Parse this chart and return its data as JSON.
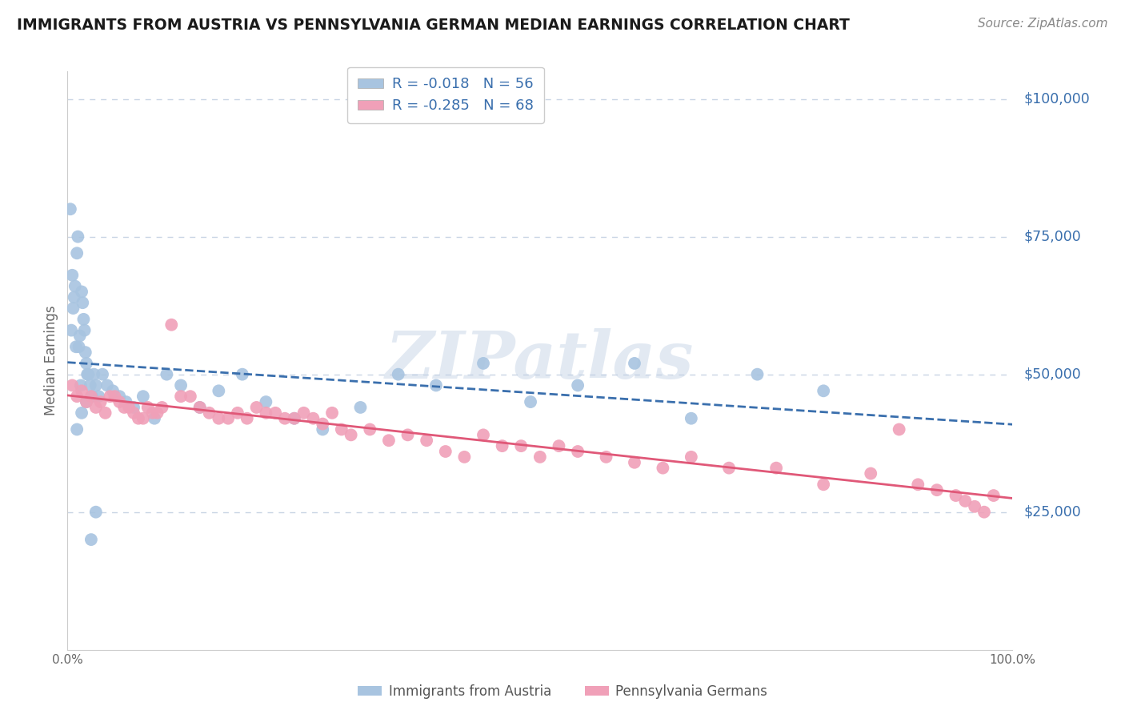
{
  "title": "IMMIGRANTS FROM AUSTRIA VS PENNSYLVANIA GERMAN MEDIAN EARNINGS CORRELATION CHART",
  "source": "Source: ZipAtlas.com",
  "ylabel": "Median Earnings",
  "watermark": "ZIPatlas",
  "series": [
    {
      "name": "Immigrants from Austria",
      "R": -0.018,
      "N": 56,
      "color": "#a8c4e0",
      "line_color": "#3a6fad",
      "line_style": "dashed",
      "x": [
        0.3,
        0.5,
        0.7,
        0.8,
        1.0,
        1.1,
        1.2,
        1.3,
        1.4,
        1.5,
        1.6,
        1.7,
        1.8,
        1.9,
        2.0,
        2.1,
        2.2,
        2.4,
        2.6,
        2.8,
        3.0,
        3.3,
        3.7,
        4.2,
        4.8,
        5.5,
        6.2,
        7.0,
        8.0,
        9.2,
        10.5,
        12.0,
        14.0,
        16.0,
        18.5,
        21.0,
        24.0,
        27.0,
        31.0,
        35.0,
        39.0,
        44.0,
        49.0,
        54.0,
        60.0,
        66.0,
        73.0,
        80.0,
        0.4,
        0.6,
        0.9,
        1.0,
        1.5,
        2.0,
        2.5,
        3.0
      ],
      "y": [
        80000,
        68000,
        64000,
        66000,
        72000,
        75000,
        55000,
        57000,
        48000,
        65000,
        63000,
        60000,
        58000,
        54000,
        52000,
        50000,
        50000,
        48000,
        46000,
        50000,
        48000,
        46000,
        50000,
        48000,
        47000,
        46000,
        45000,
        44000,
        46000,
        42000,
        50000,
        48000,
        44000,
        47000,
        50000,
        45000,
        42000,
        40000,
        44000,
        50000,
        48000,
        52000,
        45000,
        48000,
        52000,
        42000,
        50000,
        47000,
        58000,
        62000,
        55000,
        40000,
        43000,
        45000,
        20000,
        25000
      ]
    },
    {
      "name": "Pennsylvania Germans",
      "R": -0.285,
      "N": 68,
      "color": "#f0a0b8",
      "line_color": "#e05878",
      "line_style": "solid",
      "x": [
        0.5,
        1.0,
        1.5,
        2.0,
        2.5,
        3.0,
        3.5,
        4.0,
        4.5,
        5.0,
        5.5,
        6.0,
        6.5,
        7.0,
        7.5,
        8.0,
        8.5,
        9.0,
        9.5,
        10.0,
        11.0,
        12.0,
        13.0,
        14.0,
        15.0,
        16.0,
        17.0,
        18.0,
        19.0,
        20.0,
        21.0,
        22.0,
        23.0,
        24.0,
        25.0,
        26.0,
        27.0,
        28.0,
        29.0,
        30.0,
        32.0,
        34.0,
        36.0,
        38.0,
        40.0,
        42.0,
        44.0,
        46.0,
        48.0,
        50.0,
        52.0,
        54.0,
        57.0,
        60.0,
        63.0,
        66.0,
        70.0,
        75.0,
        80.0,
        85.0,
        88.0,
        90.0,
        92.0,
        94.0,
        95.0,
        96.0,
        97.0,
        98.0
      ],
      "y": [
        48000,
        46000,
        47000,
        45000,
        46000,
        44000,
        45000,
        43000,
        46000,
        46000,
        45000,
        44000,
        44000,
        43000,
        42000,
        42000,
        44000,
        43000,
        43000,
        44000,
        59000,
        46000,
        46000,
        44000,
        43000,
        42000,
        42000,
        43000,
        42000,
        44000,
        43000,
        43000,
        42000,
        42000,
        43000,
        42000,
        41000,
        43000,
        40000,
        39000,
        40000,
        38000,
        39000,
        38000,
        36000,
        35000,
        39000,
        37000,
        37000,
        35000,
        37000,
        36000,
        35000,
        34000,
        33000,
        35000,
        33000,
        33000,
        30000,
        32000,
        40000,
        30000,
        29000,
        28000,
        27000,
        26000,
        25000,
        28000
      ]
    }
  ],
  "yticks": [
    0,
    25000,
    50000,
    75000,
    100000
  ],
  "ytick_labels": [
    "",
    "$25,000",
    "$50,000",
    "$75,000",
    "$100,000"
  ],
  "xlim": [
    0,
    100
  ],
  "ylim": [
    0,
    105000
  ],
  "background_color": "#ffffff",
  "grid_color": "#c8d4e4",
  "title_fontsize": 13.5,
  "ylabel_fontsize": 12,
  "legend_fontsize": 13,
  "source_fontsize": 11,
  "label_color": "#3a6fad",
  "tick_color": "#666666"
}
